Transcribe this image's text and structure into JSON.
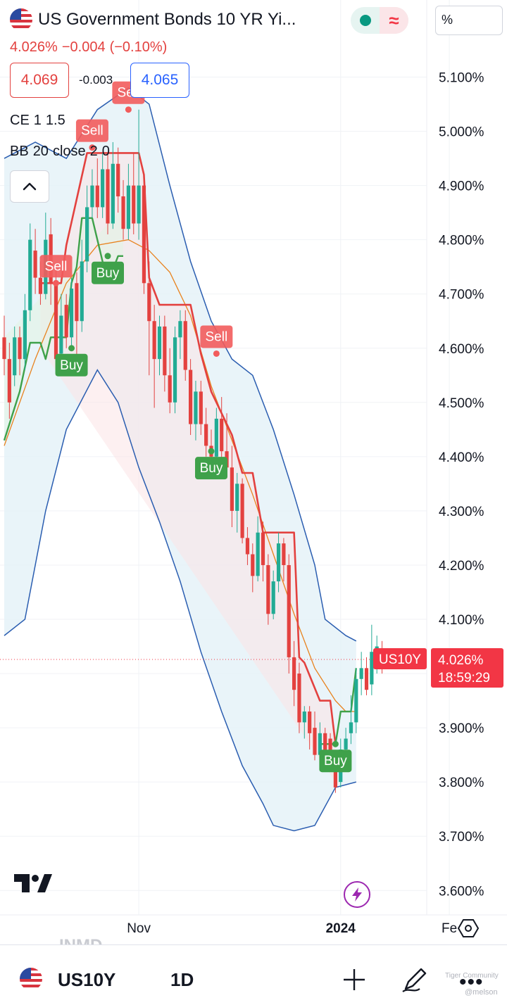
{
  "header": {
    "title": "US Government Bonds 10 YR Yi...",
    "change": {
      "last": "4.026%",
      "abs": "−0.004",
      "pct": "(−0.10%)"
    },
    "sell_price": "4.069",
    "spread": "-0.003",
    "buy_price": "4.065",
    "unit_label": "%",
    "market_status": "open",
    "currency_icon": "≈"
  },
  "indicators": {
    "ce": {
      "name": "CE",
      "params": [
        "1",
        "1.5"
      ]
    },
    "bb": {
      "name": "BB",
      "params": [
        "20",
        "close",
        "2",
        "0"
      ]
    }
  },
  "chart_data": {
    "type": "candlestick",
    "symbol": "US10Y",
    "interval": "1D",
    "y_axis": {
      "unit": "%",
      "ticks": [
        "5.100%",
        "5.000%",
        "4.900%",
        "4.800%",
        "4.700%",
        "4.600%",
        "4.500%",
        "4.400%",
        "4.300%",
        "4.200%",
        "4.100%",
        "4.000%",
        "3.900%",
        "3.800%",
        "3.700%",
        "3.600%"
      ],
      "tick_values": [
        5.1,
        5.0,
        4.9,
        4.8,
        4.7,
        4.6,
        4.5,
        4.4,
        4.3,
        4.2,
        4.1,
        4.0,
        3.9,
        3.8,
        3.7,
        3.6
      ],
      "range": [
        3.565,
        5.2
      ]
    },
    "x_axis": {
      "labels": [
        {
          "text": "Nov",
          "bar": 26,
          "bold": false
        },
        {
          "text": "2024",
          "bar": 65,
          "bold": true
        },
        {
          "text": "Fe",
          "bar": 86,
          "bold": false
        }
      ]
    },
    "last_price": {
      "label": "US10Y",
      "value": "4.026%",
      "countdown": "18:59:29",
      "price": 4.026
    },
    "candles": [
      [
        4.62,
        4.58,
        4.66,
        4.55
      ],
      [
        4.58,
        4.5,
        4.61,
        4.47
      ],
      [
        4.55,
        4.62,
        4.64,
        4.53
      ],
      [
        4.62,
        4.58,
        4.64,
        4.55
      ],
      [
        4.58,
        4.67,
        4.7,
        4.56
      ],
      [
        4.67,
        4.8,
        4.83,
        4.65
      ],
      [
        4.78,
        4.73,
        4.82,
        4.7
      ],
      [
        4.73,
        4.7,
        4.76,
        4.68
      ],
      [
        4.7,
        4.8,
        4.85,
        4.69
      ],
      [
        4.81,
        4.72,
        4.84,
        4.68
      ],
      [
        4.72,
        4.58,
        4.75,
        4.55
      ],
      [
        4.59,
        4.66,
        4.7,
        4.56
      ],
      [
        4.68,
        4.62,
        4.7,
        4.6
      ],
      [
        4.62,
        4.71,
        4.73,
        4.6
      ],
      [
        4.72,
        4.65,
        4.74,
        4.58
      ],
      [
        4.65,
        4.76,
        4.8,
        4.63
      ],
      [
        4.76,
        4.86,
        4.9,
        4.74
      ],
      [
        4.86,
        4.9,
        4.93,
        4.84
      ],
      [
        4.9,
        4.86,
        4.95,
        4.84
      ],
      [
        4.86,
        4.93,
        4.96,
        4.84
      ],
      [
        4.93,
        4.83,
        4.96,
        4.81
      ],
      [
        4.83,
        4.94,
        4.98,
        4.82
      ],
      [
        4.94,
        4.88,
        4.97,
        4.85
      ],
      [
        4.88,
        4.82,
        4.91,
        4.8
      ],
      [
        4.82,
        4.9,
        4.94,
        4.8
      ],
      [
        4.9,
        4.83,
        4.96,
        4.81
      ],
      [
        4.83,
        4.9,
        5.04,
        4.8
      ],
      [
        4.9,
        4.72,
        4.92,
        4.7
      ],
      [
        4.72,
        4.65,
        4.76,
        4.55
      ],
      [
        4.65,
        4.58,
        4.68,
        4.49
      ],
      [
        4.58,
        4.64,
        4.66,
        4.55
      ],
      [
        4.64,
        4.55,
        4.66,
        4.52
      ],
      [
        4.55,
        4.5,
        4.6,
        4.48
      ],
      [
        4.5,
        4.62,
        4.64,
        4.48
      ],
      [
        4.62,
        4.65,
        4.67,
        4.58
      ],
      [
        4.65,
        4.56,
        4.67,
        4.54
      ],
      [
        4.56,
        4.46,
        4.58,
        4.44
      ],
      [
        4.46,
        4.52,
        4.54,
        4.43
      ],
      [
        4.52,
        4.46,
        4.54,
        4.44
      ],
      [
        4.46,
        4.42,
        4.49,
        4.4
      ],
      [
        4.42,
        4.4,
        4.45,
        4.37
      ],
      [
        4.4,
        4.47,
        4.49,
        4.37
      ],
      [
        4.47,
        4.41,
        4.51,
        4.38
      ],
      [
        4.41,
        4.38,
        4.48,
        4.36
      ],
      [
        4.38,
        4.3,
        4.42,
        4.27
      ],
      [
        4.3,
        4.35,
        4.37,
        4.26
      ],
      [
        4.35,
        4.25,
        4.36,
        4.24
      ],
      [
        4.25,
        4.22,
        4.27,
        4.2
      ],
      [
        4.22,
        4.18,
        4.24,
        4.15
      ],
      [
        4.18,
        4.26,
        4.29,
        4.17
      ],
      [
        4.26,
        4.2,
        4.28,
        4.17
      ],
      [
        4.2,
        4.11,
        4.22,
        4.09
      ],
      [
        4.11,
        4.17,
        4.19,
        4.1
      ],
      [
        4.17,
        4.24,
        4.26,
        4.15
      ],
      [
        4.24,
        4.2,
        4.25,
        4.17
      ],
      [
        4.2,
        4.03,
        4.22,
        4.0
      ],
      [
        4.03,
        3.97,
        4.06,
        3.94
      ],
      [
        4.0,
        3.91,
        4.02,
        3.89
      ],
      [
        3.91,
        3.93,
        3.94,
        3.88
      ],
      [
        3.93,
        3.89,
        3.94,
        3.86
      ],
      [
        3.9,
        3.85,
        3.93,
        3.84
      ],
      [
        3.85,
        3.89,
        3.91,
        3.84
      ],
      [
        3.89,
        3.85,
        3.9,
        3.83
      ],
      [
        3.88,
        3.84,
        3.89,
        3.82
      ],
      [
        3.84,
        3.79,
        3.85,
        3.78
      ],
      [
        3.8,
        3.86,
        3.88,
        3.79
      ],
      [
        3.86,
        3.88,
        3.9,
        3.84
      ],
      [
        3.89,
        3.91,
        3.96,
        3.87
      ],
      [
        3.91,
        3.99,
        4.01,
        3.89
      ],
      [
        3.99,
        4.01,
        4.04,
        3.96
      ],
      [
        4.01,
        3.97,
        4.03,
        3.96
      ],
      [
        3.98,
        4.04,
        4.09,
        3.96
      ],
      [
        4.04,
        4.05,
        4.07,
        4.0
      ],
      [
        4.04,
        4.03,
        4.06,
        4.0
      ]
    ],
    "bb_upper": [
      [
        0,
        4.95
      ],
      [
        6,
        4.98
      ],
      [
        12,
        4.95
      ],
      [
        18,
        5.04
      ],
      [
        24,
        5.08
      ],
      [
        28,
        5.05
      ],
      [
        32,
        4.9
      ],
      [
        36,
        4.76
      ],
      [
        40,
        4.65
      ],
      [
        44,
        4.58
      ],
      [
        48,
        4.55
      ],
      [
        52,
        4.45
      ],
      [
        56,
        4.33
      ],
      [
        60,
        4.2
      ],
      [
        62,
        4.1
      ],
      [
        66,
        4.07
      ],
      [
        68,
        4.06
      ]
    ],
    "bb_middle": [
      [
        0,
        4.42
      ],
      [
        6,
        4.58
      ],
      [
        12,
        4.72
      ],
      [
        18,
        4.79
      ],
      [
        24,
        4.8
      ],
      [
        28,
        4.78
      ],
      [
        32,
        4.74
      ],
      [
        36,
        4.66
      ],
      [
        40,
        4.53
      ],
      [
        44,
        4.43
      ],
      [
        48,
        4.33
      ],
      [
        52,
        4.22
      ],
      [
        56,
        4.11
      ],
      [
        60,
        4.01
      ],
      [
        64,
        3.95
      ],
      [
        66,
        3.93
      ],
      [
        68,
        3.93
      ]
    ],
    "bb_lower": [
      [
        0,
        4.07
      ],
      [
        4,
        4.1
      ],
      [
        8,
        4.3
      ],
      [
        12,
        4.45
      ],
      [
        18,
        4.56
      ],
      [
        22,
        4.5
      ],
      [
        26,
        4.38
      ],
      [
        30,
        4.28
      ],
      [
        34,
        4.17
      ],
      [
        38,
        4.04
      ],
      [
        42,
        3.93
      ],
      [
        46,
        3.83
      ],
      [
        50,
        3.76
      ],
      [
        52,
        3.72
      ],
      [
        56,
        3.71
      ],
      [
        60,
        3.72
      ],
      [
        64,
        3.79
      ],
      [
        68,
        3.8
      ]
    ],
    "ce_long": [
      [
        0,
        4.43
      ],
      [
        3,
        4.52
      ],
      [
        5,
        4.61
      ],
      [
        7,
        4.61
      ],
      [
        8,
        4.58
      ],
      [
        9,
        4.62
      ],
      [
        12,
        4.62
      ],
      [
        13,
        4.72
      ],
      [
        14,
        4.75
      ],
      [
        15,
        4.84
      ],
      [
        17,
        4.84
      ],
      [
        20,
        4.72
      ],
      [
        22,
        4.77
      ],
      [
        23,
        4.77
      ]
    ],
    "ce_long2": [
      [
        61,
        3.87
      ],
      [
        64,
        3.87
      ],
      [
        65,
        3.93
      ],
      [
        67,
        3.93
      ],
      [
        68,
        4.01
      ]
    ],
    "ce_short": [
      [
        7,
        4.72
      ],
      [
        11,
        4.72
      ],
      [
        12,
        4.79
      ],
      [
        16,
        4.96
      ],
      [
        26,
        4.96
      ],
      [
        27,
        4.92
      ],
      [
        28,
        4.73
      ],
      [
        30,
        4.68
      ],
      [
        32,
        4.68
      ],
      [
        36,
        4.68
      ],
      [
        38,
        4.59
      ],
      [
        40,
        4.52
      ],
      [
        44,
        4.44
      ],
      [
        46,
        4.37
      ],
      [
        48,
        4.37
      ],
      [
        50,
        4.26
      ],
      [
        56,
        4.26
      ],
      [
        57,
        4.03
      ],
      [
        58,
        4.02
      ],
      [
        61,
        3.95
      ],
      [
        63,
        3.95
      ],
      [
        64,
        3.87
      ]
    ],
    "signals": [
      {
        "type": "Sell",
        "bar": 10,
        "price": 4.72
      },
      {
        "type": "Buy",
        "bar": 13,
        "price": 4.6
      },
      {
        "type": "Buy",
        "bar": 20,
        "price": 4.77
      },
      {
        "type": "Sell",
        "bar": 17,
        "price": 4.97
      },
      {
        "type": "Sell",
        "bar": 24,
        "price": 5.04
      },
      {
        "type": "Sell",
        "bar": 41,
        "price": 4.59
      },
      {
        "type": "Buy",
        "bar": 40,
        "price": 4.41
      },
      {
        "type": "Buy",
        "bar": 64,
        "price": 3.87
      }
    ],
    "colors": {
      "up": "#22ab94",
      "down": "#e3413f",
      "bb_band": "#2a5db0",
      "bb_basis": "#e8821d",
      "bb_fill": "#e4f1f8",
      "ce_long": "#3fa14a",
      "ce_short": "#e3413f"
    }
  },
  "bottom_bar": {
    "symbol": "US10Y",
    "interval": "1D",
    "ghost_text": "INMD"
  },
  "watermark": {
    "community": "Tiger Community",
    "user": "@melson"
  }
}
